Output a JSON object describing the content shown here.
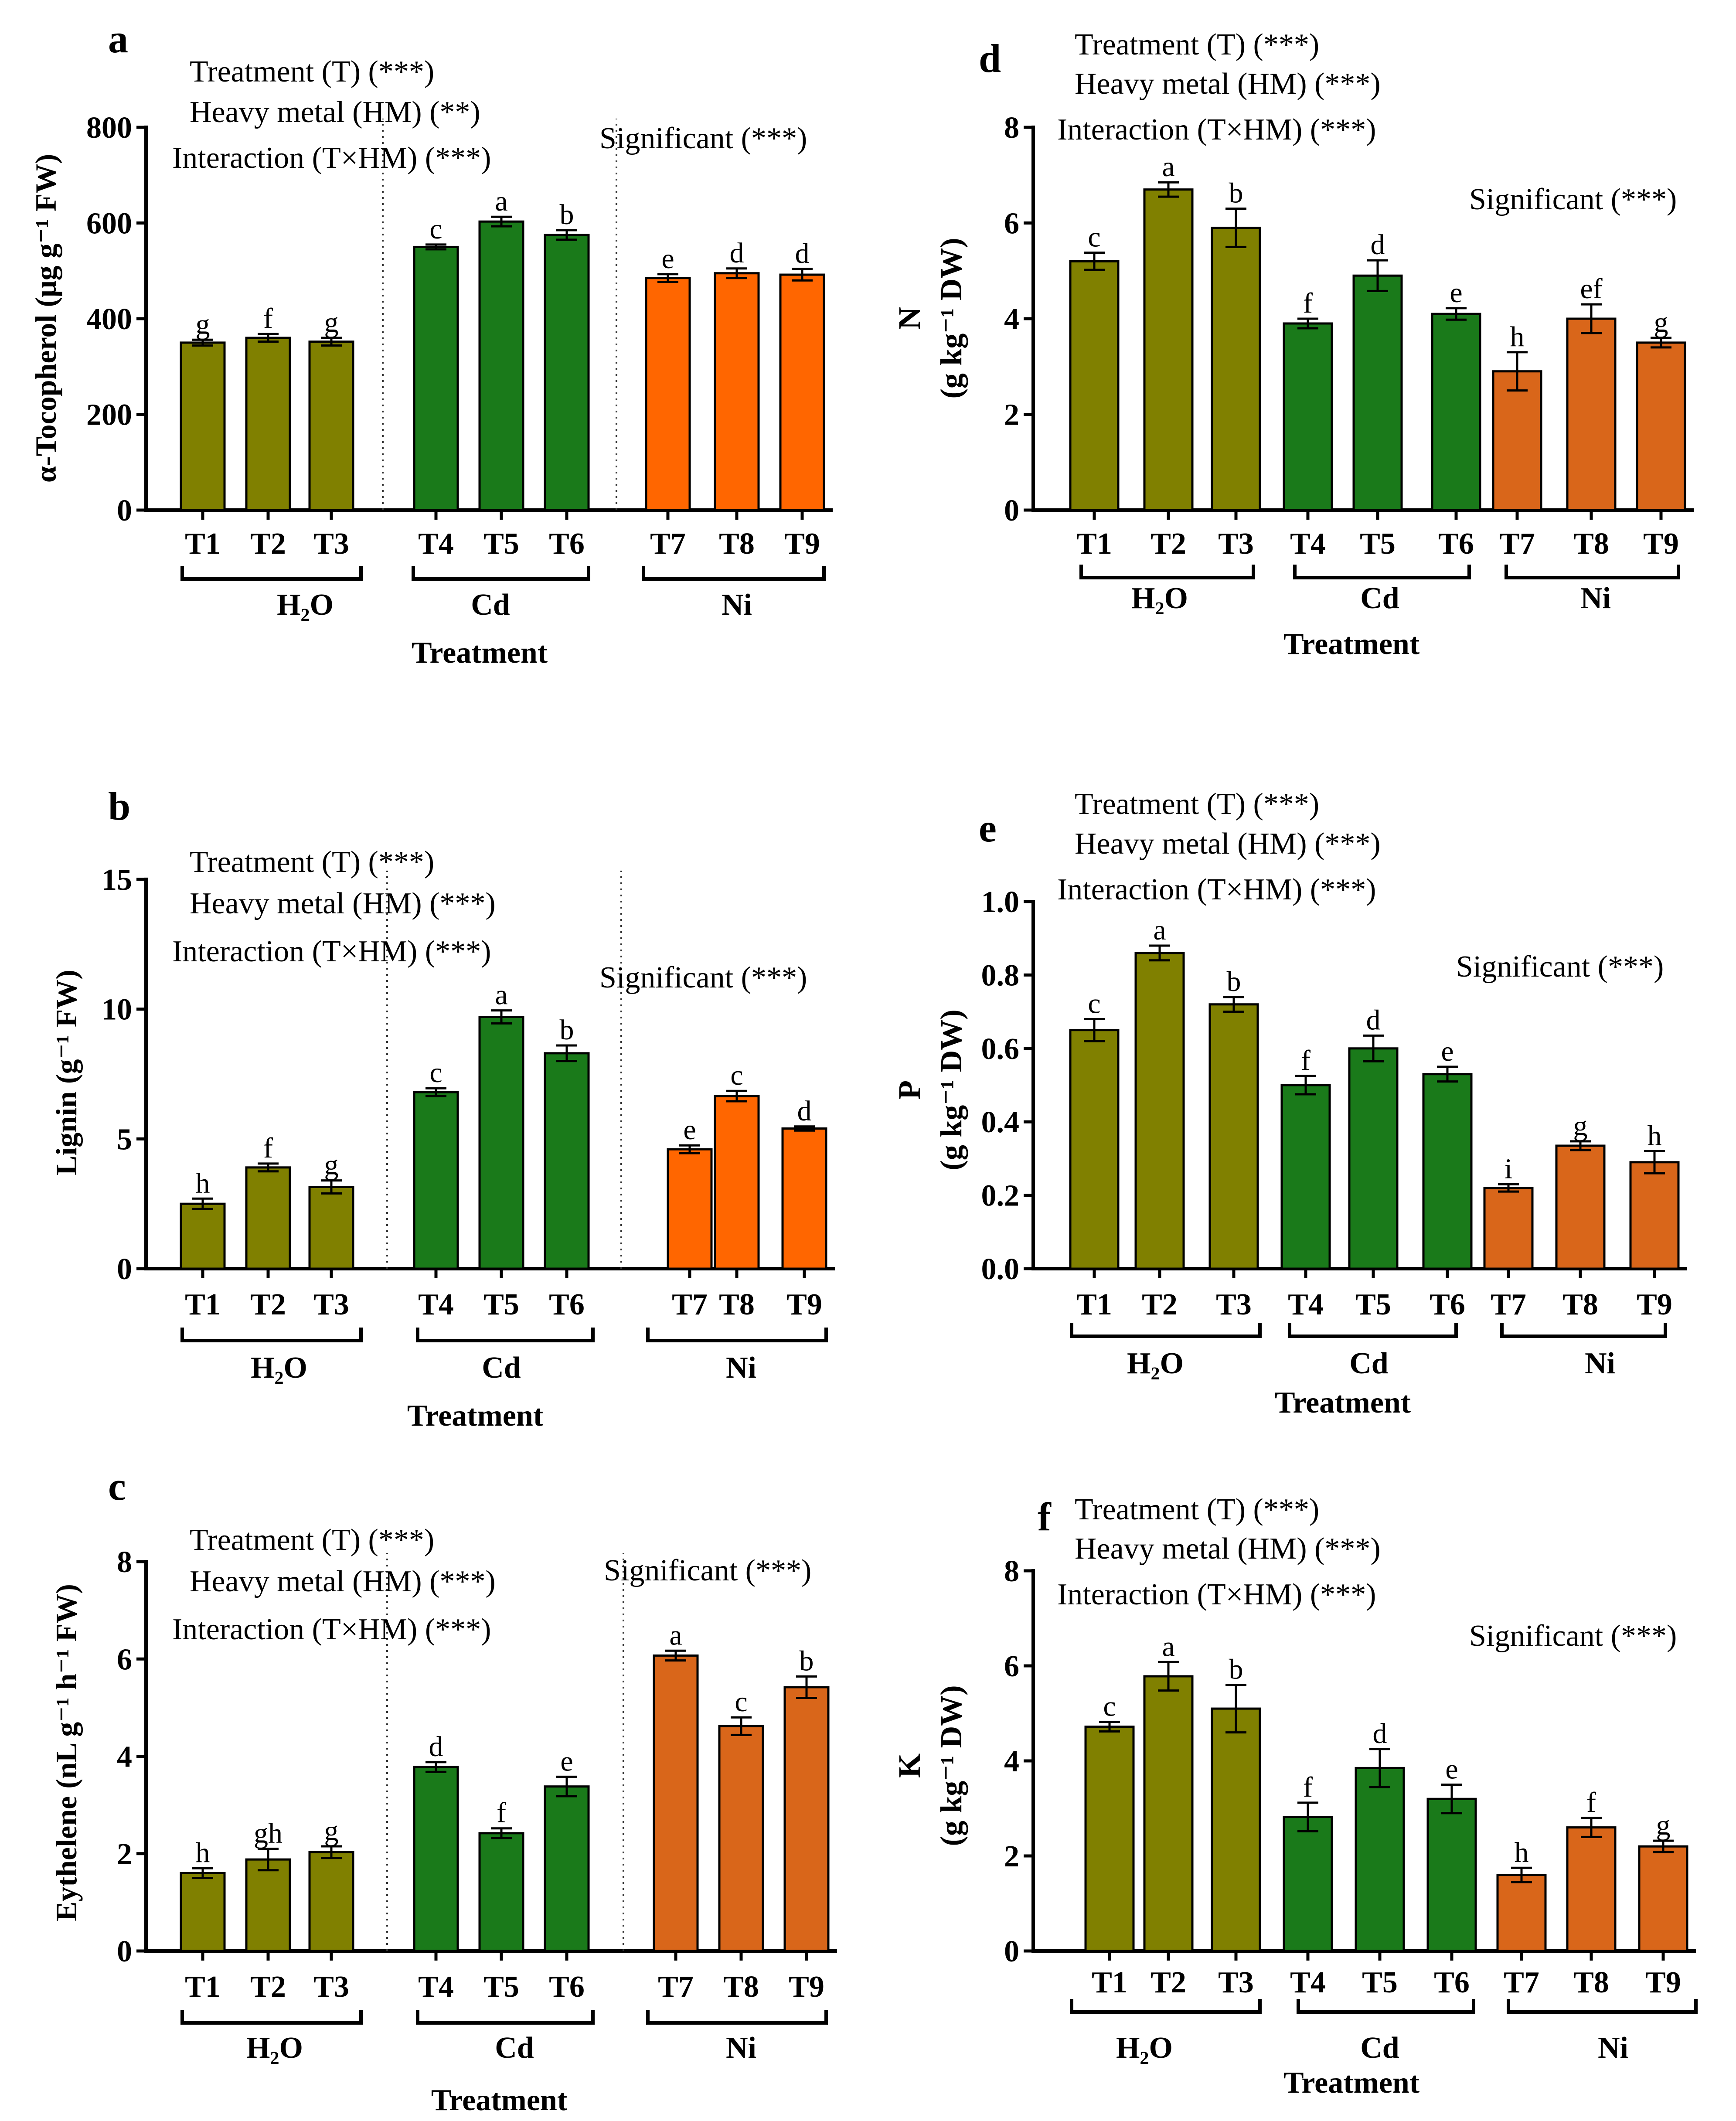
{
  "figure": {
    "colors": {
      "H2O": "#808000",
      "Cd": "#1a7a1a",
      "Ni_bright": "#ff6600",
      "Ni_dark": "#d9661a",
      "axis": "#000000"
    }
  },
  "chart_data": [
    {
      "id": "a",
      "panel_label": "a",
      "type": "bar",
      "title": "α-Tocopherol",
      "ylabel": "α-Tocopherol (μg g⁻¹ FW)",
      "xlabel": "Treatment",
      "categories": [
        "T1",
        "T2",
        "T3",
        "T4",
        "T5",
        "T6",
        "T7",
        "T8",
        "T9"
      ],
      "groups": [
        {
          "name": "H₂O",
          "members": [
            "T1",
            "T2",
            "T3"
          ]
        },
        {
          "name": "Cd",
          "members": [
            "T4",
            "T5",
            "T6"
          ]
        },
        {
          "name": "Ni",
          "members": [
            "T7",
            "T8",
            "T9"
          ]
        }
      ],
      "values": [
        350,
        360,
        352,
        550,
        603,
        575,
        485,
        495,
        492
      ],
      "errors": [
        6,
        8,
        8,
        5,
        10,
        10,
        8,
        10,
        12
      ],
      "letters": [
        "g",
        "f",
        "g",
        "c",
        "a",
        "b",
        "e",
        "d",
        "d"
      ],
      "ylim": [
        0,
        800
      ],
      "yticks": [
        0,
        200,
        400,
        600,
        800
      ],
      "ni_color": "bright",
      "anova": [
        "Treatment (T) (***)",
        "Heavy metal (HM) (**)",
        "Interaction (T×HM) (***)"
      ],
      "significant": "Significant (***)"
    },
    {
      "id": "b",
      "panel_label": "b",
      "type": "bar",
      "title": "Lignin",
      "ylabel": "Lignin (g⁻¹ FW)",
      "xlabel": "Treatment",
      "categories": [
        "T1",
        "T2",
        "T3",
        "T4",
        "T5",
        "T6",
        "T7",
        "T8",
        "T9"
      ],
      "groups": [
        {
          "name": "H₂O",
          "members": [
            "T1",
            "T2",
            "T3"
          ]
        },
        {
          "name": "Cd",
          "members": [
            "T4",
            "T5",
            "T6"
          ]
        },
        {
          "name": "Ni",
          "members": [
            "T7",
            "T8",
            "T9"
          ]
        }
      ],
      "values": [
        2.5,
        3.9,
        3.15,
        6.8,
        9.7,
        8.3,
        4.6,
        6.65,
        5.4
      ],
      "errors": [
        0.2,
        0.15,
        0.25,
        0.15,
        0.25,
        0.3,
        0.15,
        0.2,
        0.08
      ],
      "letters": [
        "h",
        "f",
        "g",
        "c",
        "a",
        "b",
        "e",
        "c",
        "d"
      ],
      "ylim": [
        0,
        15
      ],
      "yticks": [
        0,
        5,
        10,
        15
      ],
      "ni_color": "bright",
      "anova": [
        "Treatment (T) (***)",
        "Heavy metal (HM) (***)",
        "Interaction (T×HM) (***)"
      ],
      "significant": "Significant (***)"
    },
    {
      "id": "c",
      "panel_label": "c",
      "type": "bar",
      "title": "Eythelene",
      "ylabel": "Eythelene (nL g⁻¹ h⁻¹ FW)",
      "xlabel": "Treatment",
      "categories": [
        "T1",
        "T2",
        "T3",
        "T4",
        "T5",
        "T6",
        "T7",
        "T8",
        "T9"
      ],
      "groups": [
        {
          "name": "H₂O",
          "members": [
            "T1",
            "T2",
            "T3"
          ]
        },
        {
          "name": "Cd",
          "members": [
            "T4",
            "T5",
            "T6"
          ]
        },
        {
          "name": "Ni",
          "members": [
            "T7",
            "T8",
            "T9"
          ]
        }
      ],
      "values": [
        1.6,
        1.88,
        2.03,
        3.78,
        2.42,
        3.38,
        6.07,
        4.62,
        5.42
      ],
      "errors": [
        0.1,
        0.22,
        0.12,
        0.1,
        0.1,
        0.2,
        0.1,
        0.18,
        0.22
      ],
      "letters": [
        "h",
        "gh",
        "g",
        "d",
        "f",
        "e",
        "a",
        "c",
        "b"
      ],
      "ylim": [
        0,
        8
      ],
      "yticks": [
        0,
        2,
        4,
        6,
        8
      ],
      "ni_color": "dark",
      "anova": [
        "Treatment (T) (***)",
        "Heavy metal (HM) (***)",
        "Interaction (T×HM) (***)"
      ],
      "significant": "Significant (***)"
    },
    {
      "id": "d",
      "panel_label": "d",
      "type": "bar",
      "title": "N",
      "ylabel": "N",
      "ylabel_unit": "(g kg⁻¹ DW)",
      "xlabel": "Treatment",
      "categories": [
        "T1",
        "T2",
        "T3",
        "T4",
        "T5",
        "T6",
        "T7",
        "T8",
        "T9"
      ],
      "groups": [
        {
          "name": "H₂O",
          "members": [
            "T1",
            "T2",
            "T3"
          ]
        },
        {
          "name": "Cd",
          "members": [
            "T4",
            "T5",
            "T6"
          ]
        },
        {
          "name": "Ni",
          "members": [
            "T7",
            "T8",
            "T9"
          ]
        }
      ],
      "values": [
        5.2,
        6.7,
        5.9,
        3.9,
        4.9,
        4.1,
        2.9,
        4.0,
        3.5
      ],
      "errors": [
        0.18,
        0.15,
        0.4,
        0.1,
        0.32,
        0.12,
        0.4,
        0.3,
        0.1
      ],
      "letters": [
        "c",
        "a",
        "b",
        "f",
        "d",
        "e",
        "h",
        "ef",
        "g"
      ],
      "ylim": [
        0,
        8
      ],
      "yticks": [
        0,
        2,
        4,
        6,
        8
      ],
      "ni_color": "dark",
      "anova": [
        "Treatment (T) (***)",
        "Heavy metal (HM) (***)",
        "Interaction (T×HM) (***)"
      ],
      "significant": "Significant (***)"
    },
    {
      "id": "e",
      "panel_label": "e",
      "type": "bar",
      "title": "P",
      "ylabel": "P",
      "ylabel_unit": "(g kg⁻¹ DW)",
      "xlabel": "Treatment",
      "categories": [
        "T1",
        "T2",
        "T3",
        "T4",
        "T5",
        "T6",
        "T7",
        "T8",
        "T9"
      ],
      "groups": [
        {
          "name": "H₂O",
          "members": [
            "T1",
            "T2",
            "T3"
          ]
        },
        {
          "name": "Cd",
          "members": [
            "T4",
            "T5",
            "T6"
          ]
        },
        {
          "name": "Ni",
          "members": [
            "T7",
            "T8",
            "T9"
          ]
        }
      ],
      "values": [
        0.65,
        0.86,
        0.72,
        0.5,
        0.6,
        0.53,
        0.22,
        0.335,
        0.29
      ],
      "errors": [
        0.03,
        0.02,
        0.02,
        0.025,
        0.035,
        0.02,
        0.01,
        0.012,
        0.03
      ],
      "letters": [
        "c",
        "a",
        "b",
        "f",
        "d",
        "e",
        "i",
        "g",
        "h"
      ],
      "ylim": [
        0,
        1.0
      ],
      "yticks": [
        0.0,
        0.2,
        0.4,
        0.6,
        0.8,
        1.0
      ],
      "tick_decimals": 1,
      "ni_color": "dark",
      "anova": [
        "Treatment (T) (***)",
        "Heavy metal (HM) (***)",
        "Interaction (T×HM) (***)"
      ],
      "significant": "Significant (***)"
    },
    {
      "id": "f",
      "panel_label": "f",
      "type": "bar",
      "title": "K",
      "ylabel": "K",
      "ylabel_unit": "(g kg⁻¹ DW)",
      "xlabel": "Treatment",
      "categories": [
        "T1",
        "T2",
        "T3",
        "T4",
        "T5",
        "T6",
        "T7",
        "T8",
        "T9"
      ],
      "groups": [
        {
          "name": "H₂O",
          "members": [
            "T1",
            "T2",
            "T3"
          ]
        },
        {
          "name": "Cd",
          "members": [
            "T4",
            "T5",
            "T6"
          ]
        },
        {
          "name": "Ni",
          "members": [
            "T7",
            "T8",
            "T9"
          ]
        }
      ],
      "values": [
        4.72,
        5.78,
        5.1,
        2.82,
        3.85,
        3.2,
        1.6,
        2.6,
        2.2
      ],
      "errors": [
        0.1,
        0.3,
        0.5,
        0.3,
        0.4,
        0.3,
        0.15,
        0.2,
        0.12
      ],
      "letters": [
        "c",
        "a",
        "b",
        "f",
        "d",
        "e",
        "h",
        "f",
        "g"
      ],
      "ylim": [
        0,
        8
      ],
      "yticks": [
        0,
        2,
        4,
        6,
        8
      ],
      "ni_color": "dark",
      "anova": [
        "Treatment (T) (***)",
        "Heavy metal (HM) (***)",
        "Interaction (T×HM) (***)"
      ],
      "significant": "Significant (***)"
    }
  ]
}
